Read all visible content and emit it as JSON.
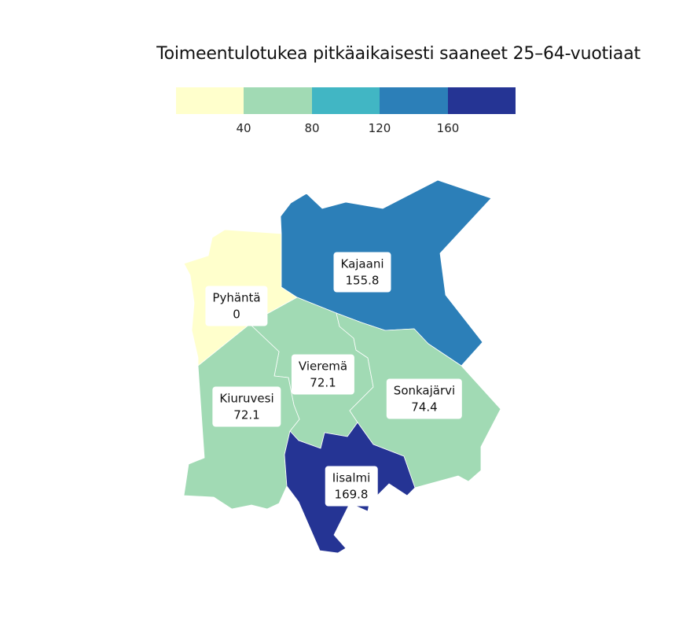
{
  "title": "Toimeentulotukea pitkäaikaisesti saaneet 25–64-vuotiaat",
  "legend": {
    "colors": [
      "#ffffcc",
      "#a1dab4",
      "#41b6c4",
      "#2c7fb8",
      "#253494"
    ],
    "ticks": [
      "40",
      "80",
      "120",
      "160"
    ]
  },
  "regions": {
    "kajaani": {
      "name": "Kajaani",
      "value": "155.8",
      "color": "#2c7fb8"
    },
    "pyhanta": {
      "name": "Pyhäntä",
      "value": "0",
      "color": "#ffffcc"
    },
    "vierema": {
      "name": "Vieremä",
      "value": "72.1",
      "color": "#a1dab4"
    },
    "kiuruvesi": {
      "name": "Kiuruvesi",
      "value": "72.1",
      "color": "#a1dab4"
    },
    "sonkajarvi": {
      "name": "Sonkajärvi",
      "value": "74.4",
      "color": "#a1dab4"
    },
    "iisalmi": {
      "name": "Iisalmi",
      "value": "169.8",
      "color": "#253494"
    }
  }
}
